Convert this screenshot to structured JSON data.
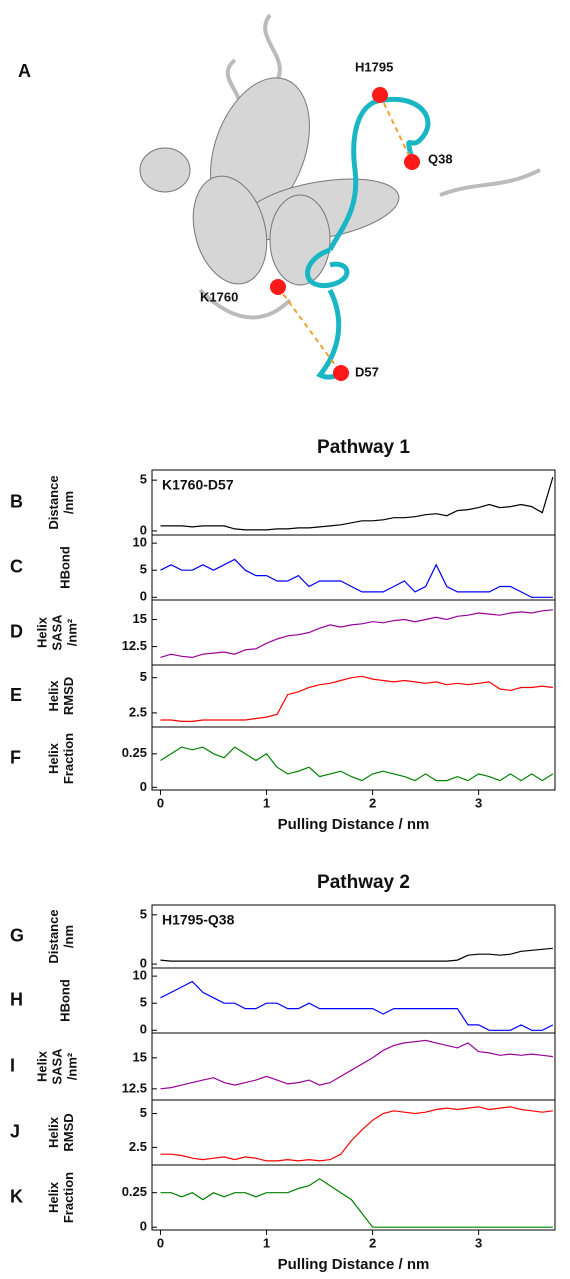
{
  "structure": {
    "panel": "A",
    "labels": [
      "H1795",
      "Q38",
      "K1760",
      "D57"
    ]
  },
  "chart_data": [
    {
      "type": "line",
      "panel": "B",
      "title": "Pathway 1",
      "annotation": "K1760-D57",
      "ylabel": [
        "Distance",
        "/nm"
      ],
      "x": [
        0,
        0.1,
        0.2,
        0.3,
        0.4,
        0.5,
        0.6,
        0.7,
        0.8,
        0.9,
        1.0,
        1.1,
        1.2,
        1.3,
        1.4,
        1.5,
        1.6,
        1.7,
        1.8,
        1.9,
        2.0,
        2.1,
        2.2,
        2.3,
        2.4,
        2.5,
        2.6,
        2.7,
        2.8,
        2.9,
        3.0,
        3.1,
        3.2,
        3.3,
        3.4,
        3.5,
        3.6,
        3.7
      ],
      "series": [
        {
          "color": "#000000",
          "values": [
            0.5,
            0.5,
            0.5,
            0.4,
            0.5,
            0.5,
            0.5,
            0.2,
            0.1,
            0.1,
            0.1,
            0.2,
            0.2,
            0.3,
            0.3,
            0.4,
            0.5,
            0.6,
            0.8,
            1.0,
            1.0,
            1.1,
            1.3,
            1.3,
            1.4,
            1.6,
            1.7,
            1.5,
            2.0,
            2.1,
            2.3,
            2.6,
            2.3,
            2.4,
            2.6,
            2.4,
            1.8,
            5.3
          ]
        }
      ],
      "xlim": [
        -0.08,
        3.72
      ],
      "ylim": [
        -0.4,
        6
      ],
      "yticks": [
        0,
        5
      ]
    },
    {
      "type": "line",
      "panel": "C",
      "ylabel": [
        "HBond"
      ],
      "x": [
        0,
        0.1,
        0.2,
        0.3,
        0.4,
        0.5,
        0.6,
        0.7,
        0.8,
        0.9,
        1.0,
        1.1,
        1.2,
        1.3,
        1.4,
        1.5,
        1.6,
        1.7,
        1.8,
        1.9,
        2.0,
        2.1,
        2.2,
        2.3,
        2.4,
        2.5,
        2.6,
        2.7,
        2.8,
        2.9,
        3.0,
        3.1,
        3.2,
        3.3,
        3.4,
        3.5,
        3.6,
        3.7
      ],
      "series": [
        {
          "color": "#0000ff",
          "values": [
            5,
            6,
            5,
            5,
            6,
            5,
            6,
            7,
            5,
            4,
            4,
            3,
            3,
            4,
            2,
            3,
            3,
            3,
            2,
            1,
            1,
            1,
            2,
            3,
            1,
            2,
            6,
            2,
            1,
            1,
            1,
            1,
            2,
            2,
            1,
            0,
            0,
            0
          ]
        }
      ],
      "xlim": [
        -0.08,
        3.72
      ],
      "ylim": [
        -0.5,
        11.5
      ],
      "yticks": [
        0,
        5,
        10
      ]
    },
    {
      "type": "line",
      "panel": "D",
      "ylabel": [
        "Helix",
        "SASA",
        "/nm²"
      ],
      "x": [
        0,
        0.1,
        0.2,
        0.3,
        0.4,
        0.5,
        0.6,
        0.7,
        0.8,
        0.9,
        1.0,
        1.1,
        1.2,
        1.3,
        1.4,
        1.5,
        1.6,
        1.7,
        1.8,
        1.9,
        2.0,
        2.1,
        2.2,
        2.3,
        2.4,
        2.5,
        2.6,
        2.7,
        2.8,
        2.9,
        3.0,
        3.1,
        3.2,
        3.3,
        3.4,
        3.5,
        3.6,
        3.7
      ],
      "series": [
        {
          "color": "#990099",
          "values": [
            11.5,
            11.8,
            11.6,
            11.5,
            11.8,
            11.9,
            12,
            11.8,
            12.2,
            12.3,
            12.8,
            13.2,
            13.5,
            13.6,
            13.8,
            14.2,
            14.5,
            14.3,
            14.5,
            14.6,
            14.8,
            14.7,
            14.9,
            15,
            14.8,
            15,
            15.2,
            15,
            15.3,
            15.4,
            15.6,
            15.5,
            15.4,
            15.6,
            15.7,
            15.6,
            15.8,
            15.9
          ]
        }
      ],
      "xlim": [
        -0.08,
        3.72
      ],
      "ylim": [
        10.8,
        16.8
      ],
      "yticks": [
        12.5,
        15
      ]
    },
    {
      "type": "line",
      "panel": "E",
      "ylabel": [
        "Helix",
        "RMSD"
      ],
      "x": [
        0,
        0.1,
        0.2,
        0.3,
        0.4,
        0.5,
        0.6,
        0.7,
        0.8,
        0.9,
        1.0,
        1.1,
        1.2,
        1.3,
        1.4,
        1.5,
        1.6,
        1.7,
        1.8,
        1.9,
        2.0,
        2.1,
        2.2,
        2.3,
        2.4,
        2.5,
        2.6,
        2.7,
        2.8,
        2.9,
        3.0,
        3.1,
        3.2,
        3.3,
        3.4,
        3.5,
        3.6,
        3.7
      ],
      "series": [
        {
          "color": "#ff0000",
          "values": [
            2,
            2,
            1.9,
            1.9,
            2,
            2,
            2,
            2,
            2,
            2.1,
            2.2,
            2.4,
            3.8,
            4,
            4.3,
            4.5,
            4.6,
            4.8,
            5,
            5.1,
            4.9,
            4.8,
            4.7,
            4.8,
            4.7,
            4.6,
            4.7,
            4.5,
            4.6,
            4.5,
            4.6,
            4.7,
            4.2,
            4.1,
            4.3,
            4.3,
            4.4,
            4.3
          ]
        }
      ],
      "xlim": [
        -0.08,
        3.72
      ],
      "ylim": [
        1.5,
        5.9
      ],
      "yticks": [
        2.5,
        5
      ]
    },
    {
      "type": "line",
      "panel": "F",
      "ylabel": [
        "Helix",
        "Fraction"
      ],
      "xlabel": "Pulling Distance / nm",
      "x": [
        0,
        0.1,
        0.2,
        0.3,
        0.4,
        0.5,
        0.6,
        0.7,
        0.8,
        0.9,
        1.0,
        1.1,
        1.2,
        1.3,
        1.4,
        1.5,
        1.6,
        1.7,
        1.8,
        1.9,
        2.0,
        2.1,
        2.2,
        2.3,
        2.4,
        2.5,
        2.6,
        2.7,
        2.8,
        2.9,
        3.0,
        3.1,
        3.2,
        3.3,
        3.4,
        3.5,
        3.6,
        3.7
      ],
      "series": [
        {
          "color": "#008000",
          "values": [
            0.2,
            0.25,
            0.3,
            0.28,
            0.3,
            0.25,
            0.22,
            0.3,
            0.25,
            0.2,
            0.25,
            0.15,
            0.1,
            0.12,
            0.15,
            0.08,
            0.1,
            0.12,
            0.08,
            0.05,
            0.1,
            0.12,
            0.1,
            0.08,
            0.05,
            0.1,
            0.05,
            0.05,
            0.08,
            0.05,
            0.1,
            0.08,
            0.05,
            0.1,
            0.05,
            0.1,
            0.05,
            0.1
          ]
        }
      ],
      "xlim": [
        -0.08,
        3.72
      ],
      "ylim": [
        -0.02,
        0.45
      ],
      "yticks": [
        0,
        0.25
      ],
      "xticks": [
        0,
        1,
        2,
        3
      ]
    },
    {
      "type": "line",
      "panel": "G",
      "title": "Pathway 2",
      "annotation": "H1795-Q38",
      "ylabel": [
        "Distance",
        "/nm"
      ],
      "x": [
        0,
        0.1,
        0.2,
        0.3,
        0.4,
        0.5,
        0.6,
        0.7,
        0.8,
        0.9,
        1.0,
        1.1,
        1.2,
        1.3,
        1.4,
        1.5,
        1.6,
        1.7,
        1.8,
        1.9,
        2.0,
        2.1,
        2.2,
        2.3,
        2.4,
        2.5,
        2.6,
        2.7,
        2.8,
        2.9,
        3.0,
        3.1,
        3.2,
        3.3,
        3.4,
        3.5,
        3.6,
        3.7
      ],
      "series": [
        {
          "color": "#000000",
          "values": [
            0.4,
            0.3,
            0.3,
            0.3,
            0.3,
            0.3,
            0.3,
            0.3,
            0.3,
            0.3,
            0.3,
            0.3,
            0.3,
            0.3,
            0.3,
            0.3,
            0.3,
            0.3,
            0.3,
            0.3,
            0.3,
            0.3,
            0.3,
            0.3,
            0.3,
            0.3,
            0.3,
            0.3,
            0.4,
            0.9,
            1.0,
            1.0,
            0.9,
            1.0,
            1.3,
            1.4,
            1.5,
            1.6
          ]
        }
      ],
      "xlim": [
        -0.08,
        3.72
      ],
      "ylim": [
        -0.4,
        6
      ],
      "yticks": [
        0,
        5
      ]
    },
    {
      "type": "line",
      "panel": "H",
      "ylabel": [
        "HBond"
      ],
      "x": [
        0,
        0.1,
        0.2,
        0.3,
        0.4,
        0.5,
        0.6,
        0.7,
        0.8,
        0.9,
        1.0,
        1.1,
        1.2,
        1.3,
        1.4,
        1.5,
        1.6,
        1.7,
        1.8,
        1.9,
        2.0,
        2.1,
        2.2,
        2.3,
        2.4,
        2.5,
        2.6,
        2.7,
        2.8,
        2.9,
        3.0,
        3.1,
        3.2,
        3.3,
        3.4,
        3.5,
        3.6,
        3.7
      ],
      "series": [
        {
          "color": "#0000ff",
          "values": [
            6,
            7,
            8,
            9,
            7,
            6,
            5,
            5,
            4,
            4,
            5,
            5,
            4,
            4,
            5,
            4,
            4,
            4,
            4,
            4,
            4,
            3,
            4,
            4,
            4,
            4,
            4,
            4,
            4,
            1,
            1,
            0,
            0,
            0,
            1,
            0,
            0,
            1
          ]
        }
      ],
      "xlim": [
        -0.08,
        3.72
      ],
      "ylim": [
        -0.5,
        11.5
      ],
      "yticks": [
        0,
        5,
        10
      ]
    },
    {
      "type": "line",
      "panel": "I",
      "ylabel": [
        "Helix",
        "SASA",
        "/nm²"
      ],
      "x": [
        0,
        0.1,
        0.2,
        0.3,
        0.4,
        0.5,
        0.6,
        0.7,
        0.8,
        0.9,
        1.0,
        1.1,
        1.2,
        1.3,
        1.4,
        1.5,
        1.6,
        1.7,
        1.8,
        1.9,
        2.0,
        2.1,
        2.2,
        2.3,
        2.4,
        2.5,
        2.6,
        2.7,
        2.8,
        2.9,
        3.0,
        3.1,
        3.2,
        3.3,
        3.4,
        3.5,
        3.6,
        3.7
      ],
      "series": [
        {
          "color": "#990099",
          "values": [
            12.5,
            12.6,
            12.8,
            13,
            13.2,
            13.4,
            13,
            12.8,
            13,
            13.2,
            13.5,
            13.2,
            12.9,
            13,
            13.2,
            12.8,
            13,
            13.5,
            14,
            14.5,
            15,
            15.6,
            16,
            16.2,
            16.3,
            16.4,
            16.2,
            16,
            15.8,
            16.2,
            15.5,
            15.4,
            15.2,
            15.3,
            15.2,
            15.3,
            15.2,
            15.1
          ]
        }
      ],
      "xlim": [
        -0.08,
        3.72
      ],
      "ylim": [
        11.6,
        17
      ],
      "yticks": [
        12.5,
        15
      ]
    },
    {
      "type": "line",
      "panel": "J",
      "ylabel": [
        "Helix",
        "RMSD"
      ],
      "x": [
        0,
        0.1,
        0.2,
        0.3,
        0.4,
        0.5,
        0.6,
        0.7,
        0.8,
        0.9,
        1.0,
        1.1,
        1.2,
        1.3,
        1.4,
        1.5,
        1.6,
        1.7,
        1.8,
        1.9,
        2.0,
        2.1,
        2.2,
        2.3,
        2.4,
        2.5,
        2.6,
        2.7,
        2.8,
        2.9,
        3.0,
        3.1,
        3.2,
        3.3,
        3.4,
        3.5,
        3.6,
        3.7
      ],
      "series": [
        {
          "color": "#ff0000",
          "values": [
            2,
            2,
            1.9,
            1.7,
            1.6,
            1.7,
            1.8,
            1.6,
            1.8,
            1.7,
            1.5,
            1.5,
            1.6,
            1.5,
            1.6,
            1.5,
            1.6,
            2,
            3,
            3.8,
            4.5,
            5,
            5.2,
            5.1,
            5,
            5.1,
            5.3,
            5.4,
            5.3,
            5.4,
            5.5,
            5.3,
            5.4,
            5.5,
            5.3,
            5.2,
            5.1,
            5.2
          ]
        }
      ],
      "xlim": [
        -0.08,
        3.72
      ],
      "ylim": [
        1.2,
        6
      ],
      "yticks": [
        2.5,
        5
      ]
    },
    {
      "type": "line",
      "panel": "K",
      "ylabel": [
        "Helix",
        "Fraction"
      ],
      "xlabel": "Pulling Distance / nm",
      "x": [
        0,
        0.1,
        0.2,
        0.3,
        0.4,
        0.5,
        0.6,
        0.7,
        0.8,
        0.9,
        1.0,
        1.1,
        1.2,
        1.3,
        1.4,
        1.5,
        1.6,
        1.7,
        1.8,
        1.9,
        2.0,
        2.1,
        2.2,
        2.3,
        2.4,
        2.5,
        2.6,
        2.7,
        2.8,
        2.9,
        3.0,
        3.1,
        3.2,
        3.3,
        3.4,
        3.5,
        3.6,
        3.7
      ],
      "series": [
        {
          "color": "#008000",
          "values": [
            0.25,
            0.25,
            0.22,
            0.25,
            0.2,
            0.25,
            0.22,
            0.25,
            0.25,
            0.22,
            0.25,
            0.25,
            0.25,
            0.28,
            0.3,
            0.35,
            0.3,
            0.25,
            0.2,
            0.1,
            0,
            0,
            0,
            0,
            0,
            0,
            0,
            0,
            0,
            0,
            0,
            0,
            0,
            0,
            0,
            0,
            0,
            0
          ]
        }
      ],
      "xlim": [
        -0.08,
        3.72
      ],
      "ylim": [
        -0.02,
        0.45
      ],
      "yticks": [
        0,
        0.25
      ],
      "xticks": [
        0,
        1,
        2,
        3
      ]
    }
  ]
}
